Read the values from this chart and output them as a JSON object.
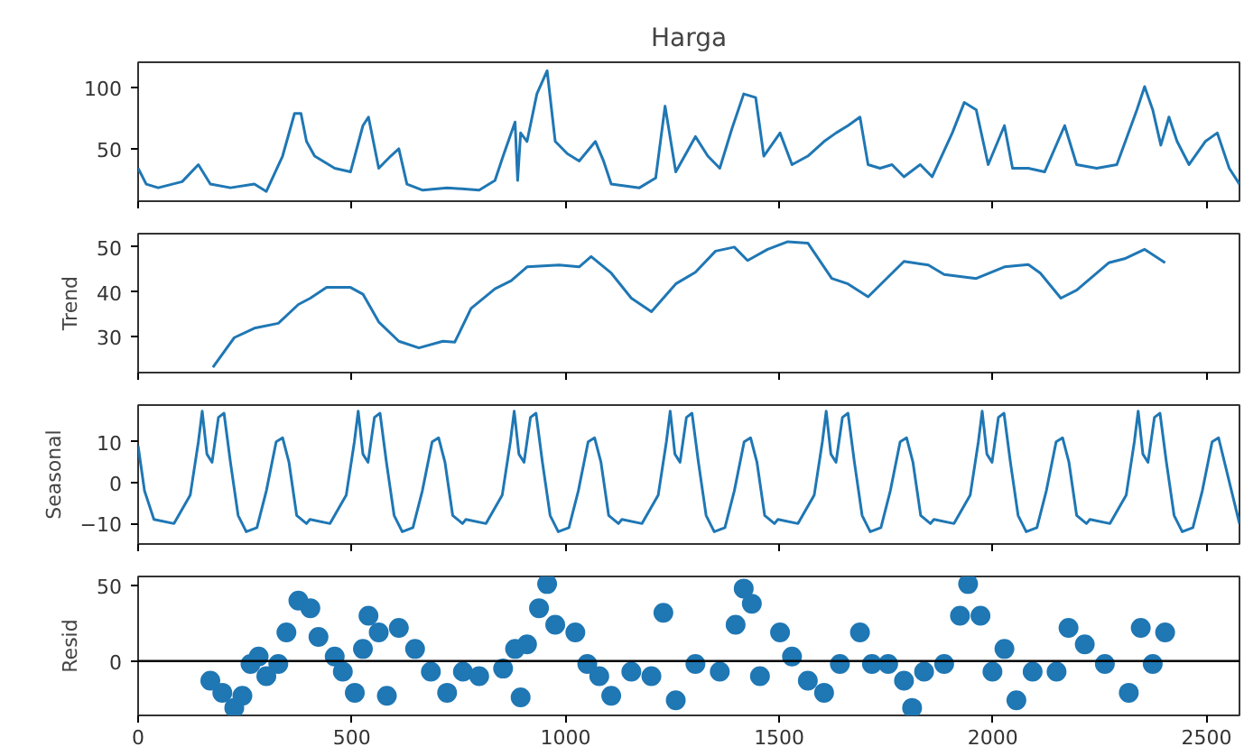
{
  "chart_data": [
    {
      "type": "line",
      "title": "Harga",
      "xlim": [
        0,
        2577
      ],
      "xticks": [
        0,
        500,
        1000,
        1500,
        2000,
        2500
      ],
      "ylim": [
        7,
        121
      ],
      "yticks": [
        50,
        100
      ],
      "tick_labels": "y",
      "grid": false,
      "series": [
        {
          "color": "#1f77b4",
          "x": [
            0,
            19,
            47,
            103,
            141,
            169,
            216,
            272,
            300,
            338,
            366,
            381,
            394,
            413,
            460,
            497,
            526,
            539,
            563,
            591,
            610,
            629,
            666,
            723,
            798,
            835,
            854,
            882,
            888,
            895,
            910,
            933,
            957,
            976,
            1004,
            1032,
            1070,
            1089,
            1107,
            1173,
            1211,
            1233,
            1258,
            1304,
            1333,
            1361,
            1389,
            1417,
            1445,
            1464,
            1502,
            1530,
            1567,
            1605,
            1633,
            1661,
            1689,
            1708,
            1736,
            1764,
            1792,
            1830,
            1858,
            1905,
            1933,
            1961,
            1989,
            2027,
            2046,
            2083,
            2121,
            2168,
            2196,
            2243,
            2290,
            2337,
            2355,
            2374,
            2393,
            2412,
            2431,
            2459,
            2497,
            2525,
            2553,
            2577
          ],
          "values": [
            34,
            21,
            18,
            23,
            37,
            21,
            18,
            21,
            15,
            44,
            79,
            79,
            56,
            44,
            34,
            31,
            69,
            76,
            34,
            44,
            50,
            21,
            16,
            18,
            16,
            24,
            44,
            72,
            24,
            63,
            56,
            95,
            114,
            56,
            46,
            40,
            56,
            40,
            21,
            18,
            26,
            85,
            31,
            60,
            44,
            34,
            66,
            95,
            92,
            44,
            63,
            37,
            44,
            56,
            63,
            69,
            76,
            37,
            34,
            37,
            27,
            37,
            27,
            63,
            88,
            82,
            37,
            69,
            34,
            34,
            31,
            69,
            37,
            34,
            37,
            82,
            101,
            82,
            53,
            76,
            56,
            37,
            56,
            63,
            34,
            21
          ]
        }
      ]
    },
    {
      "type": "line",
      "ylabel": "Trend",
      "xlim": [
        0,
        2577
      ],
      "xticks": [
        0,
        500,
        1000,
        1500,
        2000,
        2500
      ],
      "ylim": [
        22,
        53
      ],
      "yticks": [
        30,
        40,
        50
      ],
      "tick_labels": "y",
      "grid": false,
      "series": [
        {
          "color": "#1f77b4",
          "x": [
            175,
            225,
            272,
            328,
            375,
            403,
            441,
            497,
            526,
            563,
            610,
            657,
            713,
            741,
            779,
            835,
            873,
            910,
            985,
            1032,
            1060,
            1107,
            1154,
            1201,
            1258,
            1304,
            1351,
            1395,
            1426,
            1473,
            1520,
            1567,
            1623,
            1661,
            1708,
            1792,
            1849,
            1886,
            1961,
            2027,
            2083,
            2111,
            2159,
            2196,
            2271,
            2308,
            2355,
            2403
          ],
          "values": [
            23.2,
            29.8,
            31.9,
            33,
            37.2,
            38.6,
            41,
            41,
            39.5,
            33.3,
            29,
            27.5,
            29,
            28.8,
            36.3,
            40.7,
            42.5,
            45.6,
            46,
            45.6,
            47.9,
            44.2,
            38.6,
            35.6,
            41.8,
            44.4,
            49.1,
            50,
            47,
            49.5,
            51.2,
            50.9,
            43,
            41.8,
            38.9,
            46.8,
            46,
            43.9,
            43,
            45.6,
            46.1,
            44.2,
            38.6,
            40.4,
            46.5,
            47.4,
            49.5,
            46.5
          ]
        }
      ]
    },
    {
      "type": "line",
      "ylabel": "Seasonal",
      "xlim": [
        0,
        2577
      ],
      "xticks": [
        0,
        500,
        1000,
        1500,
        2000,
        2500
      ],
      "ylim": [
        -15,
        19
      ],
      "yticks": [
        -10,
        0,
        10
      ],
      "tick_labels": "y",
      "grid": false,
      "series": [
        {
          "color": "#1f77b4",
          "x": [
            0,
            15,
            37,
            84,
            122,
            141,
            150,
            161,
            173,
            188,
            201,
            216,
            234,
            253,
            278,
            300,
            323,
            338,
            353,
            371,
            394,
            402,
            449,
            487,
            506,
            515,
            526,
            538,
            553,
            566,
            581,
            599,
            618,
            643,
            665,
            688,
            703,
            718,
            736,
            759,
            767,
            814,
            852,
            871,
            880,
            891,
            903,
            918,
            931,
            946,
            964,
            983,
            1008,
            1030,
            1053,
            1068,
            1083,
            1101,
            1124,
            1132,
            1179,
            1217,
            1236,
            1245,
            1256,
            1268,
            1283,
            1296,
            1311,
            1329,
            1348,
            1373,
            1395,
            1418,
            1433,
            1448,
            1466,
            1489,
            1497,
            1544,
            1582,
            1601,
            1610,
            1621,
            1633,
            1648,
            1661,
            1676,
            1694,
            1713,
            1738,
            1760,
            1783,
            1798,
            1813,
            1831,
            1854,
            1862,
            1909,
            1947,
            1966,
            1975,
            1986,
            1998,
            2013,
            2026,
            2041,
            2059,
            2078,
            2103,
            2125,
            2148,
            2163,
            2178,
            2196,
            2219,
            2227,
            2274,
            2312,
            2331,
            2340,
            2351,
            2363,
            2378,
            2391,
            2406,
            2424,
            2443,
            2468,
            2490,
            2513,
            2528,
            2577
          ],
          "values": [
            9,
            -2,
            -9,
            -10,
            -3,
            10,
            17.5,
            7,
            5,
            16,
            17,
            5,
            -8,
            -12,
            -11,
            -2,
            10,
            11,
            5,
            -8,
            -10,
            -9,
            -10,
            -3,
            10,
            17.5,
            7,
            5,
            16,
            17,
            5,
            -8,
            -12,
            -11,
            -2,
            10,
            11,
            5,
            -8,
            -10,
            -9,
            -10,
            -3,
            10,
            17.5,
            7,
            5,
            16,
            17,
            5,
            -8,
            -12,
            -11,
            -2,
            10,
            11,
            5,
            -8,
            -10,
            -9,
            -10,
            -3,
            10,
            17.5,
            7,
            5,
            16,
            17,
            5,
            -8,
            -12,
            -11,
            -2,
            10,
            11,
            5,
            -8,
            -10,
            -9,
            -10,
            -3,
            10,
            17.5,
            7,
            5,
            16,
            17,
            5,
            -8,
            -12,
            -11,
            -2,
            10,
            11,
            5,
            -8,
            -10,
            -9,
            -10,
            -3,
            10,
            17.5,
            7,
            5,
            16,
            17,
            5,
            -8,
            -12,
            -11,
            -2,
            10,
            11,
            5,
            -8,
            -10,
            -9,
            -10,
            -3,
            10,
            17.5,
            7,
            5,
            16,
            17,
            5,
            -8,
            -12,
            -11,
            -2,
            10,
            11,
            -10
          ]
        }
      ]
    },
    {
      "type": "scatter",
      "ylabel": "Resid",
      "xlim": [
        0,
        2577
      ],
      "xticks": [
        0,
        500,
        1000,
        1500,
        2000,
        2500
      ],
      "ylim": [
        -36,
        56
      ],
      "yticks": [
        0,
        50
      ],
      "grid": false,
      "marker": "circle",
      "ref_lines": [
        {
          "axis": "y",
          "value": 0,
          "color": "#000000"
        }
      ],
      "series": [
        {
          "color": "#1f77b4",
          "x": [
            169,
            197,
            225,
            244,
            263,
            282,
            300,
            328,
            347,
            375,
            403,
            422,
            460,
            479,
            507,
            526,
            539,
            563,
            582,
            610,
            648,
            685,
            723,
            760,
            798,
            854,
            882,
            895,
            910,
            938,
            957,
            976,
            1023,
            1051,
            1079,
            1107,
            1154,
            1201,
            1229,
            1258,
            1304,
            1361,
            1398,
            1417,
            1436,
            1455,
            1502,
            1530,
            1567,
            1605,
            1642,
            1689,
            1717,
            1755,
            1792,
            1811,
            1839,
            1886,
            1923,
            1942,
            1971,
            1999,
            2027,
            2055,
            2093,
            2149,
            2177,
            2215,
            2262,
            2318,
            2346,
            2374,
            2403
          ],
          "values": [
            -13,
            -21,
            -31,
            -23,
            -2,
            3,
            -10,
            -2,
            19,
            40,
            35,
            16,
            3,
            -7,
            -21,
            8,
            30,
            19,
            -23,
            22,
            8,
            -7,
            -21,
            -7,
            -10,
            -5,
            8,
            -24,
            11,
            35,
            51,
            24,
            19,
            -2,
            -10,
            -23,
            -7,
            -10,
            32,
            -26,
            -2,
            -7,
            24,
            48,
            38,
            -10,
            19,
            3,
            -13,
            -21,
            -2,
            19,
            -2,
            -2,
            -13,
            -31,
            -7,
            -2,
            30,
            51,
            30,
            -7,
            8,
            -26,
            -7,
            -7,
            22,
            11,
            -2,
            -21,
            22,
            -2,
            19
          ]
        }
      ]
    }
  ]
}
